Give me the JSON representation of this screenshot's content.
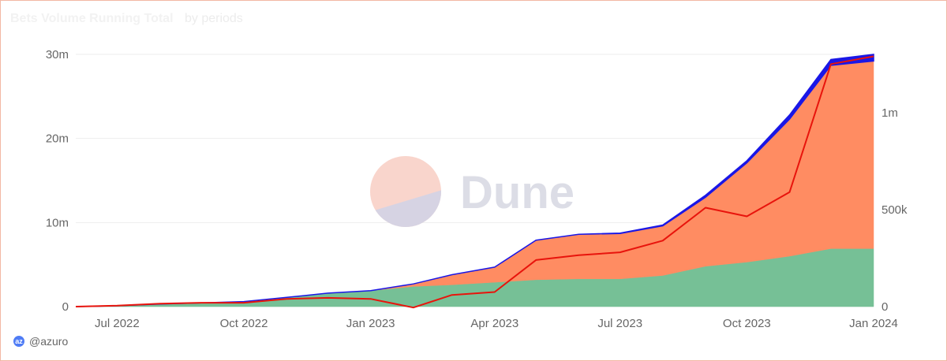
{
  "header": {
    "title": "Bets Volume Running Total",
    "subtitle": "by periods"
  },
  "watermark": {
    "text": "Dune"
  },
  "footer": {
    "author": "@azuro",
    "icon_name": "azuro-logo-icon"
  },
  "colors": {
    "green": "#76c096",
    "orange": "#ff8c62",
    "blue": "#1a17e6",
    "line": "#e8140c",
    "grid": "#eeeeee",
    "text": "#666666"
  },
  "chart_data": {
    "type": "area",
    "title": "Bets Volume Running Total",
    "subtitle": "by periods",
    "x": [
      "2022-06-01",
      "2022-07-01",
      "2022-08-01",
      "2022-09-01",
      "2022-10-01",
      "2022-11-01",
      "2022-12-01",
      "2023-01-01",
      "2023-02-01",
      "2023-03-01",
      "2023-04-01",
      "2023-05-01",
      "2023-06-01",
      "2023-07-01",
      "2023-08-01",
      "2023-09-01",
      "2023-10-01",
      "2023-11-01",
      "2023-12-01",
      "2024-01-01"
    ],
    "x_ticks": [
      "Jul 2022",
      "Oct 2022",
      "Jan 2023",
      "Apr 2023",
      "Jul 2023",
      "Oct 2023",
      "Jan 2024"
    ],
    "y_left": {
      "ticks": [
        "0",
        "10m",
        "20m",
        "30m"
      ],
      "ylim": [
        0,
        30000000
      ]
    },
    "y_right": {
      "ticks": [
        "0",
        "500k",
        "1m"
      ],
      "ylim": [
        0,
        1300000
      ]
    },
    "stacked": true,
    "series": [
      {
        "color": "#76c096",
        "axis": "left",
        "type": "area",
        "values": [
          0,
          100000,
          300000,
          450000,
          600000,
          1100000,
          1600000,
          1900000,
          2400000,
          2600000,
          2900000,
          3200000,
          3300000,
          3300000,
          3700000,
          4800000,
          5300000,
          6000000,
          6900000,
          6900000
        ]
      },
      {
        "color": "#ff8c62",
        "axis": "left",
        "type": "area",
        "values": [
          0,
          0,
          0,
          0,
          0,
          0,
          0,
          0,
          300000,
          1200000,
          1800000,
          4700000,
          5300000,
          5400000,
          5900000,
          8200000,
          11800000,
          16300000,
          21800000,
          22300000
        ]
      },
      {
        "color": "#1a17e6",
        "axis": "left",
        "type": "area",
        "values": [
          0,
          0,
          0,
          0,
          0,
          0,
          0,
          0,
          0,
          0,
          0,
          0,
          0,
          50000,
          100000,
          250000,
          250000,
          500000,
          700000,
          800000
        ]
      },
      {
        "color": "#e8140c",
        "axis": "right",
        "type": "line",
        "values": [
          0,
          5000,
          15000,
          20000,
          20000,
          40000,
          45000,
          40000,
          -5000,
          60000,
          75000,
          240000,
          265000,
          280000,
          340000,
          510000,
          465000,
          590000,
          1250000,
          1290000
        ]
      }
    ],
    "grid": true,
    "legend": "none"
  }
}
